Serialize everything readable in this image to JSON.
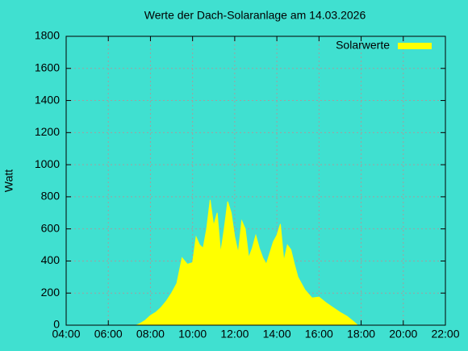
{
  "chart_data": {
    "type": "area",
    "title": "Werte der Dach-Solaranlage am 14.03.2026",
    "ylabel": "Watt",
    "x": [
      "07:20",
      "07:30",
      "07:45",
      "08:00",
      "08:15",
      "08:30",
      "08:45",
      "09:00",
      "09:15",
      "09:30",
      "09:45",
      "10:00",
      "10:10",
      "10:20",
      "10:30",
      "10:40",
      "10:50",
      "11:00",
      "11:10",
      "11:20",
      "11:30",
      "11:40",
      "11:50",
      "12:00",
      "12:10",
      "12:20",
      "12:30",
      "12:40",
      "12:50",
      "13:00",
      "13:10",
      "13:20",
      "13:30",
      "13:40",
      "13:50",
      "14:00",
      "14:10",
      "14:20",
      "14:30",
      "14:40",
      "14:50",
      "15:00",
      "15:20",
      "15:40",
      "16:00",
      "16:20",
      "16:40",
      "17:00",
      "17:20",
      "17:40",
      "17:50"
    ],
    "series": [
      {
        "name": "Solarwerte",
        "color": "#ffff00",
        "values": [
          0,
          10,
          30,
          60,
          80,
          110,
          150,
          200,
          260,
          420,
          380,
          390,
          550,
          500,
          480,
          600,
          780,
          620,
          700,
          450,
          600,
          770,
          700,
          550,
          450,
          650,
          600,
          420,
          480,
          560,
          480,
          420,
          380,
          450,
          520,
          560,
          630,
          400,
          500,
          470,
          380,
          300,
          220,
          170,
          175,
          140,
          110,
          80,
          55,
          20,
          0
        ]
      }
    ],
    "xlim": [
      "04:00",
      "22:00"
    ],
    "xticks": [
      "04:00",
      "06:00",
      "08:00",
      "10:00",
      "12:00",
      "14:00",
      "16:00",
      "18:00",
      "20:00",
      "22:00"
    ],
    "ylim": [
      0,
      1800
    ],
    "yticks": [
      0,
      200,
      400,
      600,
      800,
      1000,
      1200,
      1400,
      1600,
      1800
    ],
    "grid": true,
    "legend": "top-right"
  }
}
